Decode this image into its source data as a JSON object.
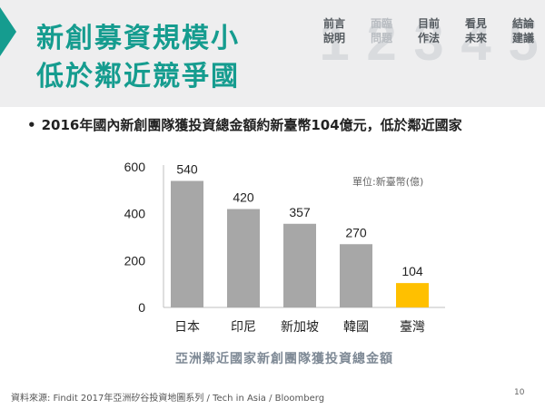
{
  "slide": {
    "title_lines": [
      "新創募資規模小",
      "低於鄰近競爭國"
    ],
    "subtitle": "2016年國內新創團隊獲投資總金額約新臺幣104億元，低於鄰近國家",
    "bullet": "•",
    "unit_label": "單位:新臺幣(億)",
    "source": "資料來源: Findit 2017年亞洲矽谷投資地圖系列 / Tech in Asia / Bloomberg",
    "page_number": "10"
  },
  "nav": {
    "steps": [
      {
        "numeral": "1",
        "lines": [
          "前言",
          "說明"
        ],
        "active": false
      },
      {
        "numeral": "2",
        "lines": [
          "面臨",
          "問題"
        ],
        "active": true
      },
      {
        "numeral": "3",
        "lines": [
          "目前",
          "作法"
        ],
        "active": false
      },
      {
        "numeral": "4",
        "lines": [
          "看見",
          "未來"
        ],
        "active": false
      },
      {
        "numeral": "5",
        "lines": [
          "結論",
          "建議"
        ],
        "active": false
      }
    ]
  },
  "chart_data": {
    "type": "bar",
    "categories": [
      "日本",
      "印尼",
      "新加坡",
      "韓國",
      "臺灣"
    ],
    "values": [
      540,
      420,
      357,
      270,
      104
    ],
    "colors": [
      "#a7a7a7",
      "#a7a7a7",
      "#a7a7a7",
      "#a7a7a7",
      "#ffc000"
    ],
    "xlabel": "亞洲鄰近國家新創團隊獲投資總金額",
    "ylabel": "",
    "ylim": [
      0,
      600
    ],
    "yticks": [
      0,
      200,
      400,
      600
    ],
    "grid": false,
    "unit": "單位:新臺幣(億)"
  },
  "colors": {
    "accent": "#159c8f",
    "header_band": "#eeeeef",
    "highlight_bar": "#ffc000",
    "bar": "#a7a7a7"
  }
}
